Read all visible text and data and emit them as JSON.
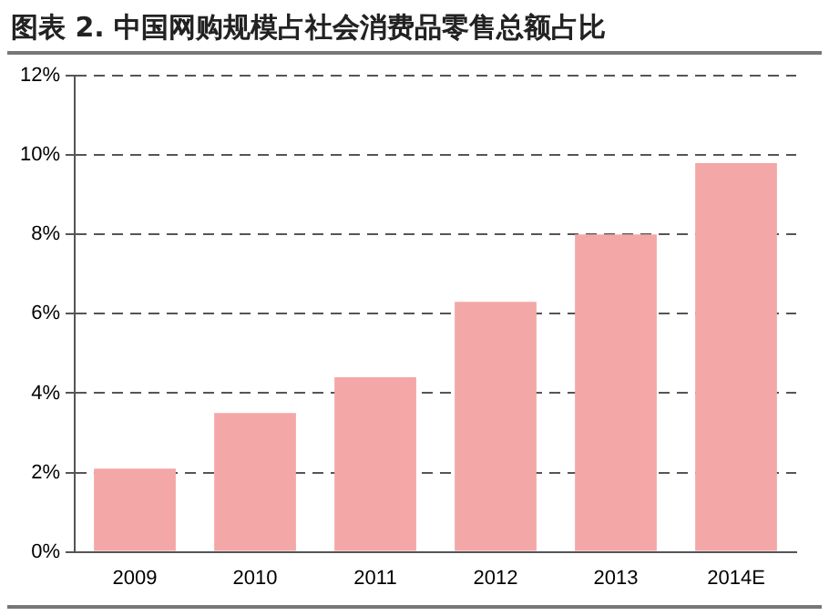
{
  "chart_data": {
    "type": "bar",
    "title": "图表 2. 中国网购规模占社会消费品零售总额占比",
    "categories": [
      "2009",
      "2010",
      "2011",
      "2012",
      "2013",
      "2014E"
    ],
    "values": [
      2.1,
      3.5,
      4.4,
      6.3,
      8.0,
      9.8
    ],
    "color": "#f4a7a7",
    "ylim": [
      0,
      12
    ],
    "yticks": [
      {
        "value": 0,
        "label": "0%"
      },
      {
        "value": 2,
        "label": "2%"
      },
      {
        "value": 4,
        "label": "4%"
      },
      {
        "value": 6,
        "label": "6%"
      },
      {
        "value": 8,
        "label": "8%"
      },
      {
        "value": 10,
        "label": "10%"
      },
      {
        "value": 12,
        "label": "12%"
      }
    ],
    "grid": "y",
    "legend": false
  }
}
